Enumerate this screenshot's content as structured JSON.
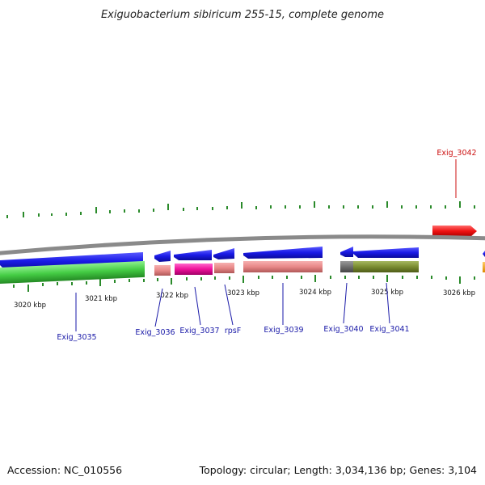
{
  "title": "Exiguobacterium sibiricum 255-15, complete genome",
  "footer": {
    "accession": "Accession: NC_010556",
    "topology": "Topology: circular; Length: 3,034,136 bp; Genes: 3,104"
  },
  "ruler_labels": [
    "3020 kbp",
    "3021 kbp",
    "3022 kbp",
    "3023 kbp",
    "3024 kbp",
    "3025 kbp",
    "3026 kbp"
  ],
  "gene_labels": [
    "Exig_3035",
    "Exig_3036",
    "Exig_3037",
    "rpsF",
    "Exig_3039",
    "Exig_3040",
    "Exig_3041",
    "Exig_3042"
  ],
  "colors": {
    "backbone": "#8a8a8a",
    "cds_forward": "#ee1111",
    "cds_reverse": "#1a1aee",
    "tick": "#2a8a2a",
    "label_blue": "#1a1aa8",
    "label_red": "#cc1111"
  }
}
